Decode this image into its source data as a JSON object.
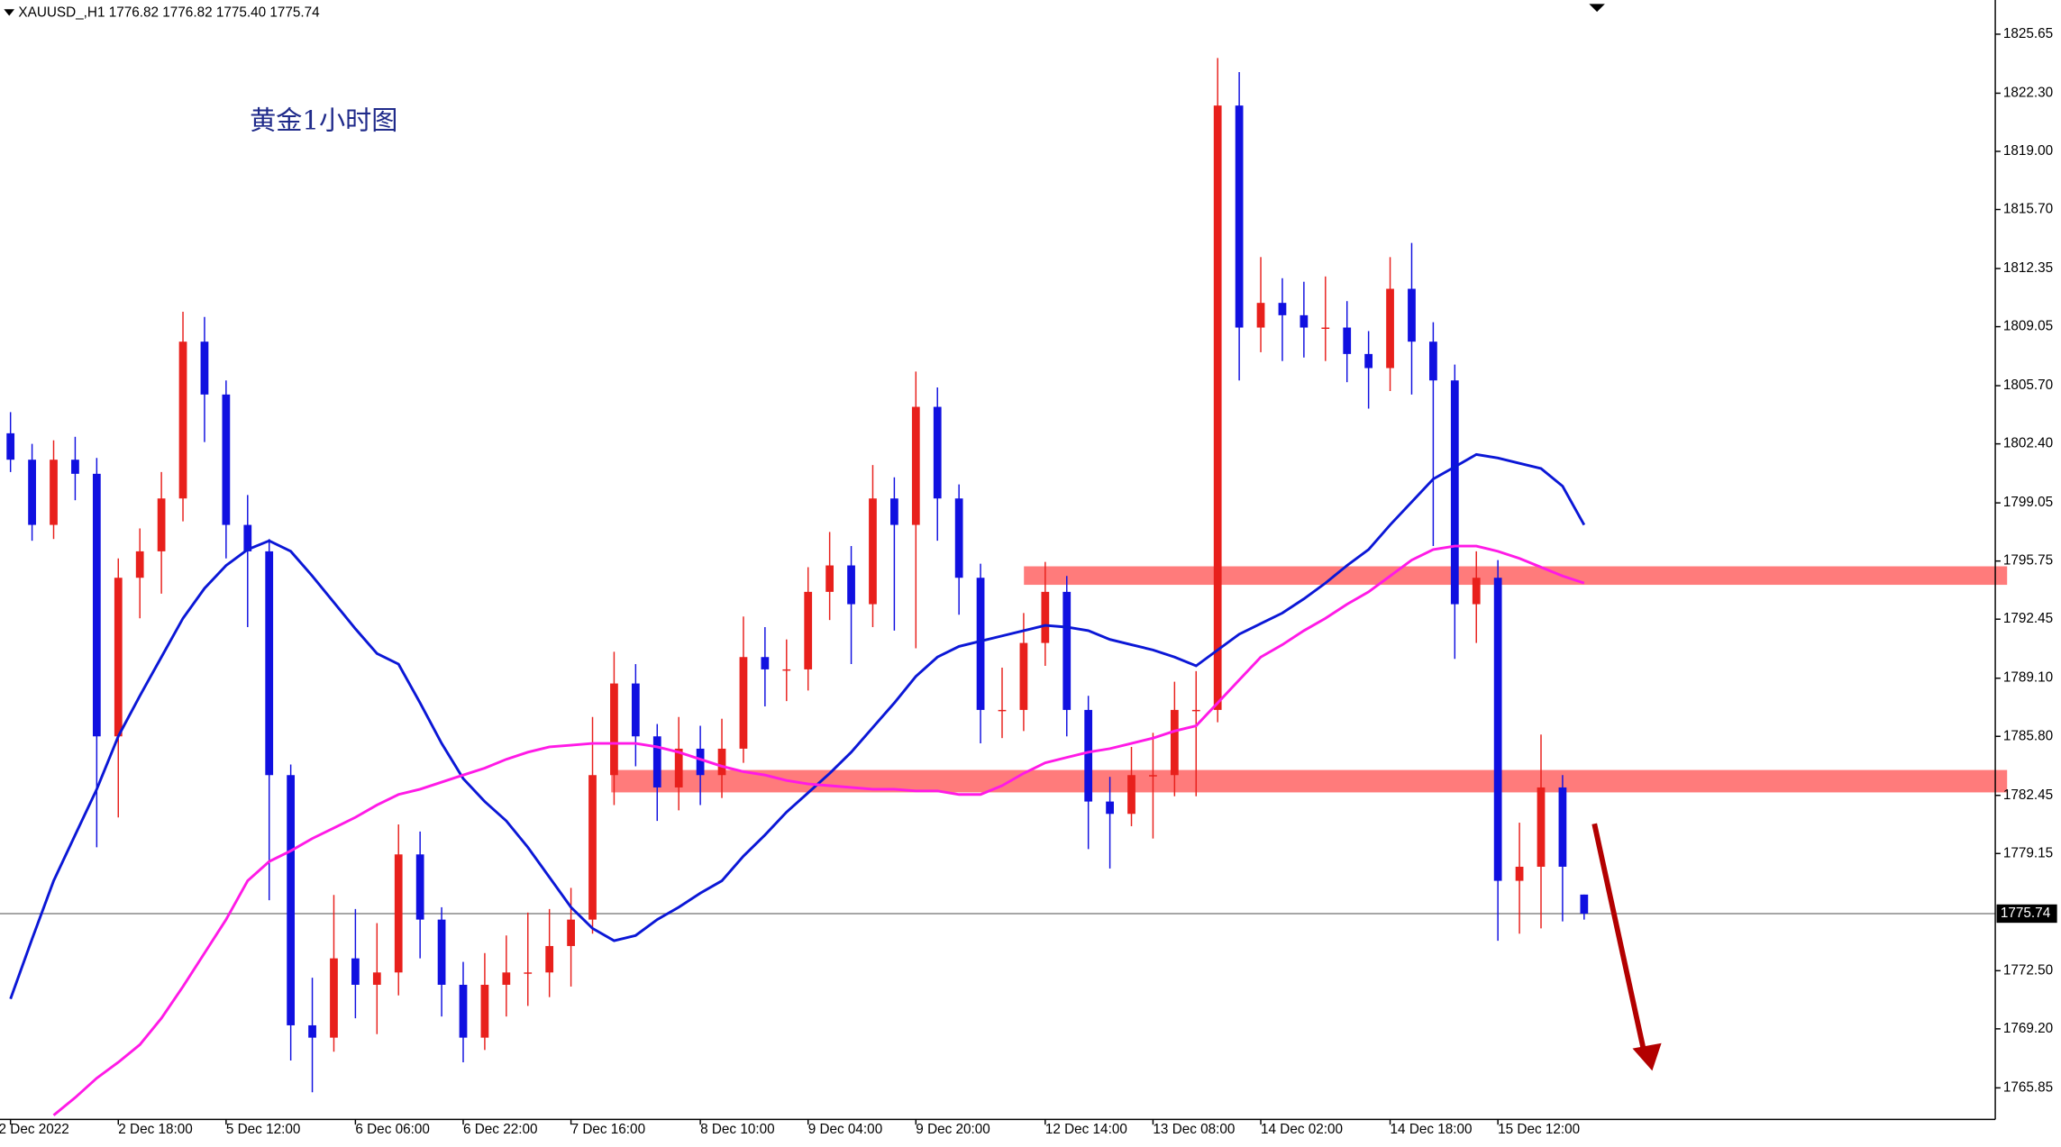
{
  "header": "XAUUSD_,H1  1776.82 1776.82 1775.40 1775.74",
  "chart_data": {
    "type": "candlestick",
    "title": "黄金1小时图",
    "ylim": [
      1764.06,
      1827.59
    ],
    "yticks": [
      1825.65,
      {
        "value": 1822.3,
        "label": "1822.30"
      },
      {
        "value": 1819,
        "label": "1819.00"
      },
      {
        "value": 1815.7,
        "label": "1815.70"
      },
      1812.35,
      1809.05,
      {
        "value": 1805.7,
        "label": "1805.70"
      },
      {
        "value": 1802.4,
        "label": "1802.40"
      },
      1799.05,
      1795.75,
      1792.45,
      {
        "value": 1789.1,
        "label": "1789.10"
      },
      {
        "value": 1785.8,
        "label": "1785.80"
      },
      1782.45,
      1779.15,
      {
        "value": 1772.5,
        "label": "1772.50"
      },
      {
        "value": 1769.2,
        "label": "1769.20"
      },
      1765.85
    ],
    "categories": [
      "2 Dec 2022",
      null,
      null,
      null,
      null,
      "2 Dec 18:00",
      null,
      null,
      null,
      null,
      "5 Dec 12:00",
      null,
      null,
      null,
      null,
      null,
      "6 Dec 06:00",
      null,
      null,
      null,
      null,
      "6 Dec 22:00",
      null,
      null,
      null,
      null,
      "7 Dec 16:00",
      null,
      null,
      null,
      null,
      null,
      "8 Dec 10:00",
      null,
      null,
      null,
      null,
      "9 Dec 04:00",
      null,
      null,
      null,
      null,
      "9 Dec 20:00",
      null,
      null,
      null,
      null,
      null,
      "12 Dec 14:00",
      null,
      null,
      null,
      null,
      "13 Dec 08:00",
      null,
      null,
      null,
      null,
      "14 Dec 02:00",
      null,
      null,
      null,
      null,
      null,
      "14 Dec 18:00",
      null,
      null,
      null,
      null,
      "15 Dec 12:00",
      null,
      null,
      null,
      null
    ],
    "candles": {
      "open": [
        1803.0,
        1801.5,
        1797.8,
        1801.5,
        1800.7,
        1785.8,
        1794.8,
        1796.3,
        1799.3,
        1808.2,
        1805.2,
        1797.8,
        1796.3,
        1783.6,
        1769.4,
        1768.7,
        1773.2,
        1771.7,
        1772.4,
        1779.1,
        1775.4,
        1771.7,
        1768.7,
        1771.7,
        1772.4,
        1772.4,
        1773.9,
        1775.4,
        1783.6,
        1788.8,
        1785.8,
        1782.9,
        1785.1,
        1783.6,
        1785.1,
        1790.3,
        1789.6,
        1789.6,
        1794.0,
        1795.5,
        1793.3,
        1799.3,
        1797.8,
        1804.5,
        1799.3,
        1794.8,
        1787.3,
        1787.3,
        1791.1,
        1794.0,
        1787.3,
        1782.1,
        1781.4,
        1783.6,
        1783.6,
        1787.3,
        1787.3,
        1821.6,
        1809.0,
        1810.4,
        1809.7,
        1809.0,
        1809.0,
        1807.5,
        1806.7,
        1811.2,
        1808.2,
        1806.0,
        1793.3,
        1794.8,
        1777.6,
        1778.4,
        1782.9,
        1776.82
      ],
      "high": [
        1804.2,
        1802.4,
        1802.6,
        1802.8,
        1801.6,
        1795.9,
        1797.6,
        1800.8,
        1809.9,
        1809.6,
        1806.0,
        1799.5,
        1797.0,
        1784.2,
        1772.1,
        1776.8,
        1776.0,
        1775.2,
        1780.8,
        1780.4,
        1776.1,
        1773.0,
        1773.5,
        1774.5,
        1775.8,
        1776.0,
        1777.2,
        1786.9,
        1790.6,
        1789.9,
        1786.5,
        1786.9,
        1786.4,
        1786.8,
        1792.6,
        1792.0,
        1791.3,
        1795.4,
        1797.4,
        1796.6,
        1801.2,
        1800.5,
        1806.5,
        1805.6,
        1800.1,
        1795.6,
        1789.7,
        1792.8,
        1795.7,
        1794.9,
        1788.1,
        1783.5,
        1785.2,
        1786.0,
        1788.9,
        1789.5,
        1824.3,
        1823.5,
        1813.0,
        1811.8,
        1811.6,
        1811.9,
        1810.5,
        1808.8,
        1813.0,
        1813.8,
        1809.3,
        1806.9,
        1796.3,
        1795.8,
        1780.9,
        1785.9,
        1783.6,
        1776.82
      ],
      "low": [
        1800.8,
        1796.9,
        1797.0,
        1799.2,
        1779.5,
        1781.2,
        1792.5,
        1793.9,
        1798.0,
        1802.5,
        1795.9,
        1792.0,
        1776.5,
        1767.4,
        1765.6,
        1767.9,
        1769.8,
        1768.9,
        1771.1,
        1773.2,
        1769.9,
        1767.3,
        1768.0,
        1769.9,
        1770.5,
        1771.0,
        1771.6,
        1774.6,
        1781.9,
        1784.1,
        1781.0,
        1781.6,
        1781.9,
        1782.3,
        1784.3,
        1787.5,
        1787.8,
        1788.4,
        1792.4,
        1789.9,
        1792.0,
        1791.8,
        1790.8,
        1796.9,
        1792.7,
        1785.4,
        1785.7,
        1786.1,
        1789.8,
        1785.8,
        1779.4,
        1778.3,
        1780.7,
        1780.0,
        1782.4,
        1782.4,
        1786.6,
        1806.0,
        1807.6,
        1807.1,
        1807.3,
        1807.1,
        1805.9,
        1804.4,
        1805.4,
        1805.2,
        1796.6,
        1790.2,
        1791.1,
        1774.2,
        1774.6,
        1774.9,
        1775.3,
        1775.4
      ],
      "close": [
        1801.5,
        1797.8,
        1801.5,
        1800.7,
        1785.8,
        1794.8,
        1796.3,
        1799.3,
        1808.2,
        1805.2,
        1797.8,
        1796.3,
        1783.6,
        1769.4,
        1768.7,
        1773.2,
        1771.7,
        1772.4,
        1779.1,
        1775.4,
        1771.7,
        1768.7,
        1771.7,
        1772.4,
        1772.4,
        1773.9,
        1775.4,
        1783.6,
        1788.8,
        1785.8,
        1782.9,
        1785.1,
        1783.6,
        1785.1,
        1790.3,
        1789.6,
        1789.6,
        1794.0,
        1795.5,
        1793.3,
        1799.3,
        1797.8,
        1804.5,
        1799.3,
        1794.8,
        1787.3,
        1787.3,
        1791.1,
        1794.0,
        1787.3,
        1782.1,
        1781.4,
        1783.6,
        1783.6,
        1787.3,
        1787.3,
        1821.6,
        1809.0,
        1810.4,
        1809.7,
        1809.0,
        1809.0,
        1807.5,
        1806.7,
        1811.2,
        1808.2,
        1806.0,
        1793.3,
        1794.8,
        1777.6,
        1778.4,
        1782.9,
        1778.4,
        1775.74
      ]
    },
    "up_color": "#e8201c",
    "down_color": "#1010e0",
    "series": [
      {
        "color": "#0b17d6",
        "values": [
          1770.9,
          1774.3,
          1777.6,
          1780.2,
          1782.8,
          1785.8,
          1788.1,
          1790.3,
          1792.5,
          1794.2,
          1795.5,
          1796.4,
          1796.9,
          1796.3,
          1794.9,
          1793.4,
          1791.9,
          1790.5,
          1789.9,
          1787.7,
          1785.4,
          1783.4,
          1782.1,
          1781.0,
          1779.5,
          1777.8,
          1776.1,
          1774.9,
          1774.2,
          1774.5,
          1775.4,
          1776.1,
          1776.9,
          1777.6,
          1779.0,
          1780.2,
          1781.5,
          1782.6,
          1783.7,
          1784.9,
          1786.3,
          1787.7,
          1789.2,
          1790.3,
          1790.9,
          1791.2,
          1791.5,
          1791.8,
          1792.1,
          1792.0,
          1791.8,
          1791.3,
          1791.0,
          1790.7,
          1790.3,
          1789.8,
          1790.7,
          1791.6,
          1792.2,
          1792.8,
          1793.6,
          1794.5,
          1795.5,
          1796.4,
          1797.8,
          1799.1,
          1800.4,
          1801.1,
          1801.8,
          1801.6,
          1801.3,
          1801.0,
          1800.0,
          1797.8
        ]
      },
      {
        "color": "#ff1ae6",
        "values": [
          null,
          null,
          1764.3,
          1765.3,
          1766.4,
          1767.3,
          1768.3,
          1769.8,
          1771.6,
          1773.5,
          1775.4,
          1777.6,
          1778.7,
          1779.3,
          1780.0,
          1780.6,
          1781.2,
          1781.9,
          1782.5,
          1782.8,
          1783.2,
          1783.6,
          1784.0,
          1784.5,
          1784.9,
          1785.2,
          1785.3,
          1785.4,
          1785.4,
          1785.4,
          1785.2,
          1784.9,
          1784.5,
          1784.1,
          1783.8,
          1783.6,
          1783.3,
          1783.1,
          1783.0,
          1782.9,
          1782.8,
          1782.8,
          1782.7,
          1782.7,
          1782.5,
          1782.5,
          1783.0,
          1783.7,
          1784.3,
          1784.6,
          1784.9,
          1785.1,
          1785.4,
          1785.7,
          1786.1,
          1786.4,
          1787.7,
          1789.0,
          1790.3,
          1791.0,
          1791.8,
          1792.5,
          1793.3,
          1794.0,
          1794.9,
          1795.8,
          1796.4,
          1796.6,
          1796.6,
          1796.3,
          1795.9,
          1795.4,
          1794.9,
          1794.5
        ]
      }
    ],
    "zones": [
      {
        "top": 1795.45,
        "bottom": 1794.4
      },
      {
        "top": 1783.89,
        "bottom": 1782.62
      }
    ],
    "zone_color": "#ff7b7b",
    "current_price": 1775.74
  }
}
